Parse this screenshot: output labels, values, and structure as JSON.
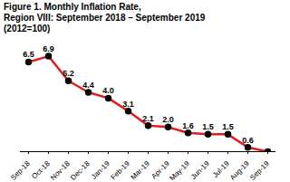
{
  "chart_data": {
    "type": "line",
    "title": "Figure 1. Monthly Inflation Rate,\nRegion VIII: September 2018 – September 2019\n(2012=100)",
    "categories": [
      "Sep-18",
      "Oct-18",
      "Nov-18",
      "Dec-18",
      "Jan-19",
      "Feb-19",
      "Mar-19",
      "Apr-19",
      "May-19",
      "Jun-19",
      "Jul-19",
      "Aug-19",
      "Sep-19"
    ],
    "values": [
      6.5,
      6.9,
      5.2,
      4.4,
      4.0,
      3.1,
      2.1,
      2.0,
      1.6,
      1.5,
      1.5,
      0.6,
      0.3
    ],
    "value_labels": [
      "6.5",
      "6.9",
      "5.2",
      "4.4",
      "4.0",
      "3.1",
      "2.1",
      "2.0",
      "1.6",
      "1.5",
      "1.5",
      "0.6",
      null
    ],
    "color": "#e41a1c",
    "marker": "circle",
    "data_labels": true,
    "ylim": [
      0.3,
      7.5
    ],
    "yticks": [],
    "tick_labels": "x",
    "grid": false
  }
}
